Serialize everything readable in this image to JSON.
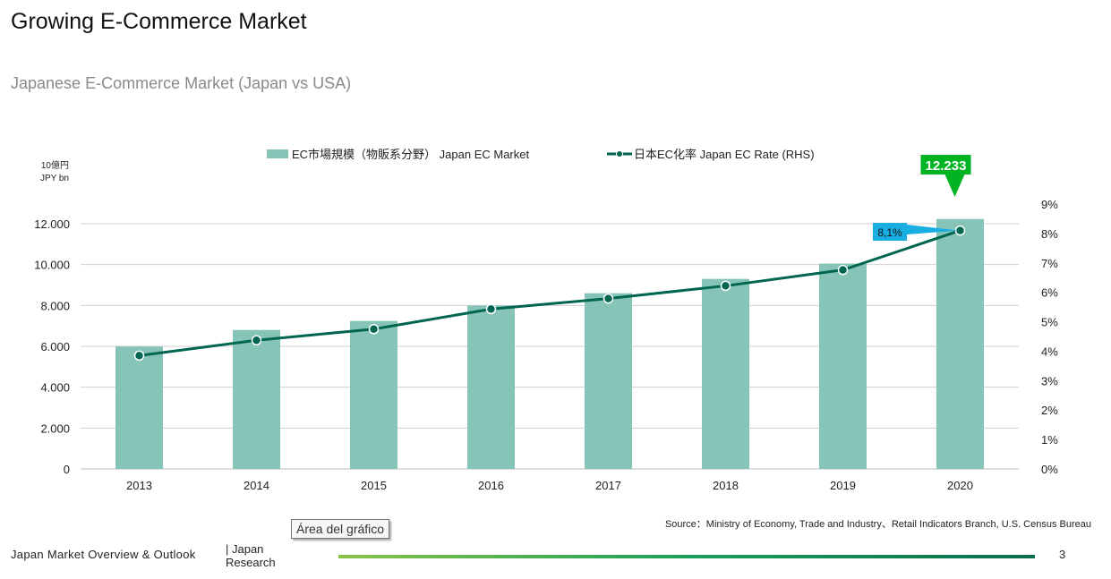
{
  "header": {
    "title": "Growing E-Commerce Market",
    "subtitle": "Japanese E-Commerce Market  (Japan vs USA)"
  },
  "colors": {
    "bar": "#85c4b6",
    "line": "#00664f",
    "highlight_green": "#00b322",
    "highlight_blue": "#19aee2"
  },
  "chart_data": {
    "type": "bar",
    "categories": [
      "2013",
      "2014",
      "2015",
      "2016",
      "2017",
      "2018",
      "2019",
      "2020"
    ],
    "series": [
      {
        "name": "EC市場規模（物販系分野） Japan EC Market",
        "type": "bar",
        "axis": "left",
        "values": [
          5990,
          6800,
          7240,
          8000,
          8600,
          9300,
          10050,
          12233
        ]
      },
      {
        "name": "日本EC化率 Japan EC Rate (RHS)",
        "type": "line",
        "axis": "right",
        "values": [
          3.85,
          4.37,
          4.75,
          5.43,
          5.79,
          6.22,
          6.76,
          8.1
        ]
      }
    ],
    "y_left": {
      "unit_line1": "10億円",
      "unit_line2": "JPY bn",
      "ticks": [
        "0",
        "2.000",
        "4.000",
        "6.000",
        "8.000",
        "10.000",
        "12.000"
      ],
      "ylim": [
        0,
        12000
      ]
    },
    "y_right": {
      "ticks": [
        "0%",
        "1%",
        "2%",
        "3%",
        "4%",
        "5%",
        "6%",
        "7%",
        "8%",
        "9%"
      ],
      "ylim": [
        0,
        9
      ]
    },
    "callouts": {
      "bar_value": "12.233",
      "rate_value": "8,1%"
    },
    "legend_position": "top-center",
    "grid": true
  },
  "source": "Source：Ministry of Economy, Trade and Industry、Retail Indicators Branch, U.S. Census Bureau",
  "tooltip": "Área del gráfico",
  "footer": {
    "left": "Japan Market Overview & Outlook",
    "brand_line1": "|  Japan",
    "brand_line2": "Research",
    "page_number": "3"
  }
}
